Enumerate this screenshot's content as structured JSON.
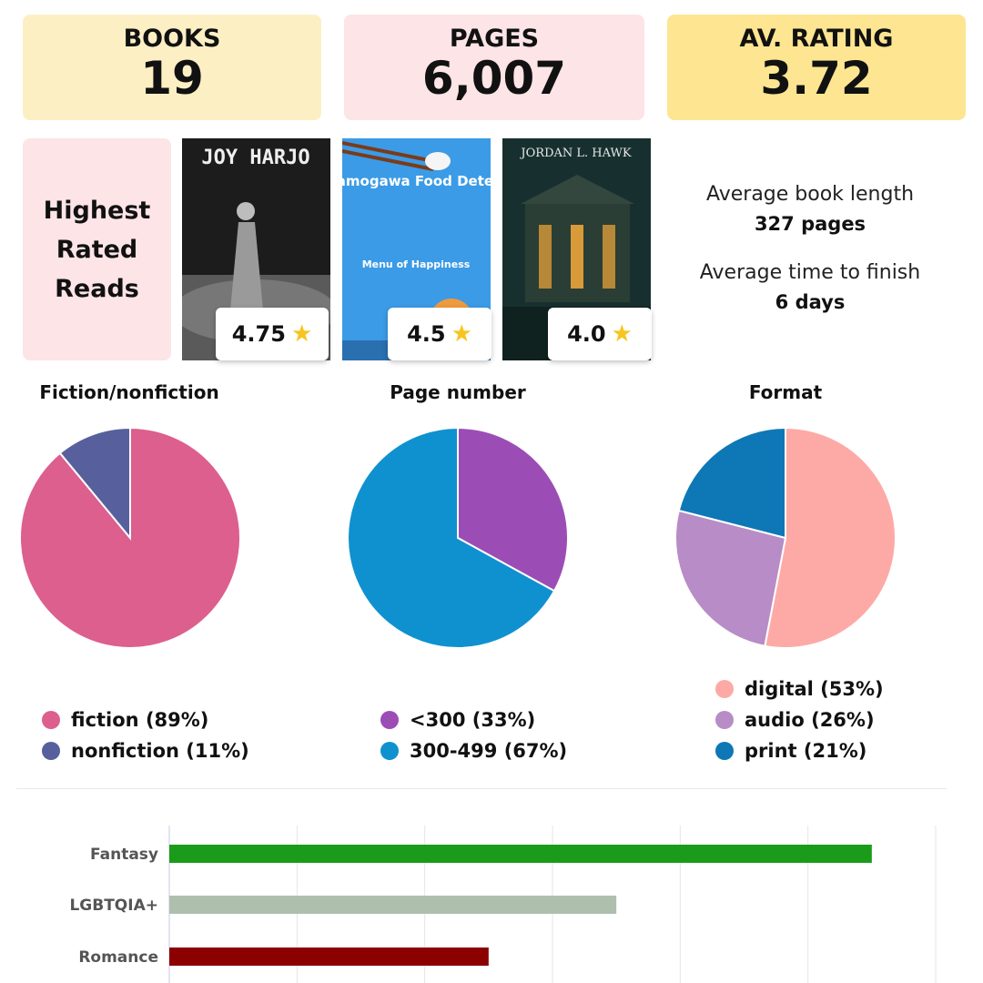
{
  "stats": {
    "books": {
      "label": "BOOKS",
      "value": "19"
    },
    "pages": {
      "label": "PAGES",
      "value": "6,007"
    },
    "rating": {
      "label": "AV. RATING",
      "value": "3.72"
    }
  },
  "highest_rated": {
    "title_lines": [
      "Highest",
      "Rated",
      "Reads"
    ],
    "books": [
      {
        "author": "JOY HARJO",
        "cover_colors": [
          "#1c1c1c",
          "#8a8a8a"
        ],
        "rating": "4.75"
      },
      {
        "title": "The Kamogawa Food Detectives",
        "subtitle": "Menu of Happiness",
        "cover_colors": [
          "#3b9be6",
          "#f5f5f5"
        ],
        "rating": "4.5"
      },
      {
        "author": "JORDAN L. HAWK",
        "cover_colors": [
          "#17302f",
          "#d99b3a"
        ],
        "rating": "4.0"
      }
    ],
    "star_icon": "star-icon"
  },
  "averages": {
    "length_label": "Average book length",
    "length_value": "327 pages",
    "time_label": "Average time to finish",
    "time_value": "6 days"
  },
  "chart_data": [
    {
      "type": "pie",
      "title": "Fiction/nonfiction",
      "slices": [
        {
          "label": "fiction (89%)",
          "value": 89,
          "color": "#dc5f8e"
        },
        {
          "label": "nonfiction (11%)",
          "value": 11,
          "color": "#57609d"
        }
      ]
    },
    {
      "type": "pie",
      "title": "Page number",
      "slices": [
        {
          "label": "<300 (33%)",
          "value": 33,
          "color": "#9b4db5"
        },
        {
          "label": "300-499 (67%)",
          "value": 67,
          "color": "#0f91cf"
        }
      ]
    },
    {
      "type": "pie",
      "title": "Format",
      "slices": [
        {
          "label": "digital (53%)",
          "value": 53,
          "color": "#fdaaa6"
        },
        {
          "label": "audio (26%)",
          "value": 26,
          "color": "#b88cc6"
        },
        {
          "label": "print (21%)",
          "value": 21,
          "color": "#0d78b5"
        }
      ]
    },
    {
      "type": "bar",
      "orientation": "horizontal",
      "categories": [
        "Fantasy",
        "LGBTQIA+",
        "Romance"
      ],
      "values": [
        11,
        7,
        5
      ],
      "colors": [
        "#1a9c1a",
        "#aebfae",
        "#8b0000"
      ],
      "xlim": [
        0,
        12
      ],
      "grid": true
    }
  ]
}
